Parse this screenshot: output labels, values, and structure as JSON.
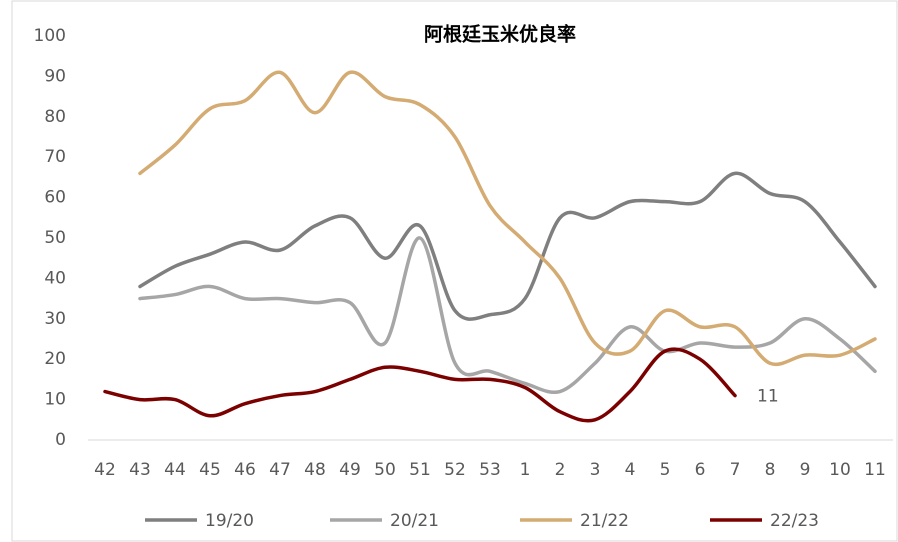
{
  "chart_data": {
    "type": "line",
    "title": "阿根廷玉米优良率",
    "categories": [
      "42",
      "43",
      "44",
      "45",
      "46",
      "47",
      "48",
      "49",
      "50",
      "51",
      "52",
      "53",
      "1",
      "2",
      "3",
      "4",
      "5",
      "6",
      "7",
      "8",
      "9",
      "10",
      "11"
    ],
    "series": [
      {
        "name": "19/20",
        "color": "#7f7f7f",
        "values": [
          null,
          38,
          43,
          46,
          49,
          47,
          53,
          55,
          45,
          53,
          32,
          31,
          35,
          55,
          55,
          59,
          59,
          59,
          66,
          61,
          59,
          49,
          38
        ]
      },
      {
        "name": "20/21",
        "color": "#a6a6a6",
        "values": [
          null,
          35,
          36,
          38,
          35,
          35,
          34,
          34,
          24,
          50,
          19,
          17,
          14,
          12,
          19,
          28,
          22,
          24,
          23,
          24,
          30,
          25,
          17
        ]
      },
      {
        "name": "21/22",
        "color": "#d4ab72",
        "values": [
          null,
          66,
          73,
          82,
          84,
          91,
          81,
          91,
          85,
          83,
          75,
          58,
          49,
          40,
          24,
          22,
          32,
          28,
          28,
          19,
          21,
          21,
          25
        ]
      },
      {
        "name": "22/23",
        "color": "#7b0000",
        "values": [
          12,
          10,
          10,
          6,
          9,
          11,
          12,
          15,
          18,
          17,
          15,
          15,
          13,
          7,
          5,
          12,
          22,
          20,
          11,
          null,
          null,
          null,
          null
        ]
      }
    ],
    "ylim": [
      0,
      100
    ],
    "yticks": [
      0,
      10,
      20,
      30,
      40,
      50,
      60,
      70,
      80,
      90,
      100
    ]
  }
}
